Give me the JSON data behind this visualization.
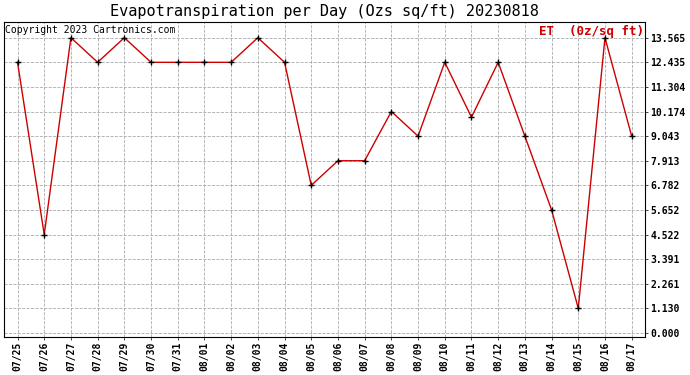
{
  "title": "Evapotranspiration per Day (Ozs sq/ft) 20230818",
  "copyright": "Copyright 2023 Cartronics.com",
  "legend_label": "ET  (0z/sq ft)",
  "dates": [
    "07/25",
    "07/26",
    "07/27",
    "07/28",
    "07/29",
    "07/30",
    "07/31",
    "08/01",
    "08/02",
    "08/03",
    "08/04",
    "08/05",
    "08/06",
    "08/07",
    "08/08",
    "08/09",
    "08/10",
    "08/11",
    "08/12",
    "08/13",
    "08/14",
    "08/15",
    "08/16",
    "08/17"
  ],
  "values": [
    12.435,
    4.522,
    13.565,
    12.435,
    13.565,
    12.435,
    12.435,
    12.435,
    12.435,
    13.565,
    12.435,
    6.782,
    7.913,
    7.913,
    10.174,
    9.043,
    12.435,
    9.913,
    12.435,
    9.043,
    5.652,
    1.13,
    13.565,
    9.043
  ],
  "yticks": [
    0.0,
    1.13,
    2.261,
    3.391,
    4.522,
    5.652,
    6.782,
    7.913,
    9.043,
    10.174,
    11.304,
    12.435,
    13.565
  ],
  "line_color": "#cc0000",
  "marker_color": "#000000",
  "background_color": "#ffffff",
  "grid_color": "#aaaaaa",
  "title_fontsize": 11,
  "copyright_fontsize": 7,
  "legend_color": "#cc0000",
  "legend_fontsize": 9,
  "tick_fontsize": 7,
  "figwidth": 6.9,
  "figheight": 3.75,
  "dpi": 100
}
